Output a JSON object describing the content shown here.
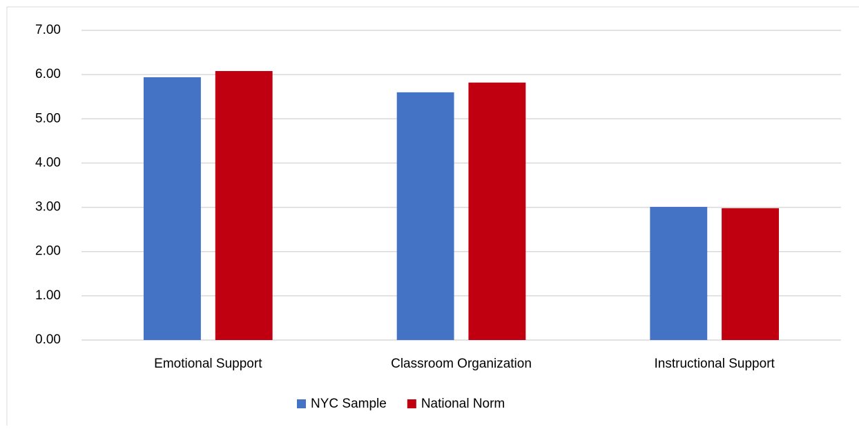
{
  "chart_data": {
    "type": "bar",
    "categories": [
      "Emotional Support",
      "Classroom Organization",
      "Instructional Support"
    ],
    "series": [
      {
        "name": "NYC Sample",
        "color": "#4472c4",
        "values": [
          5.94,
          5.6,
          3.01
        ]
      },
      {
        "name": "National Norm",
        "color": "#c00010",
        "values": [
          6.08,
          5.82,
          2.98
        ]
      }
    ],
    "ylim": [
      0,
      7
    ],
    "yticks": [
      {
        "value": 0,
        "label": "0.00"
      },
      {
        "value": 1,
        "label": "1.00"
      },
      {
        "value": 2,
        "label": "2.00"
      },
      {
        "value": 3,
        "label": "3.00"
      },
      {
        "value": 4,
        "label": "4.00"
      },
      {
        "value": 5,
        "label": "5.00"
      },
      {
        "value": 6,
        "label": "6.00"
      },
      {
        "value": 7,
        "label": "7.00"
      }
    ],
    "grid": true,
    "legend": "bottom"
  }
}
